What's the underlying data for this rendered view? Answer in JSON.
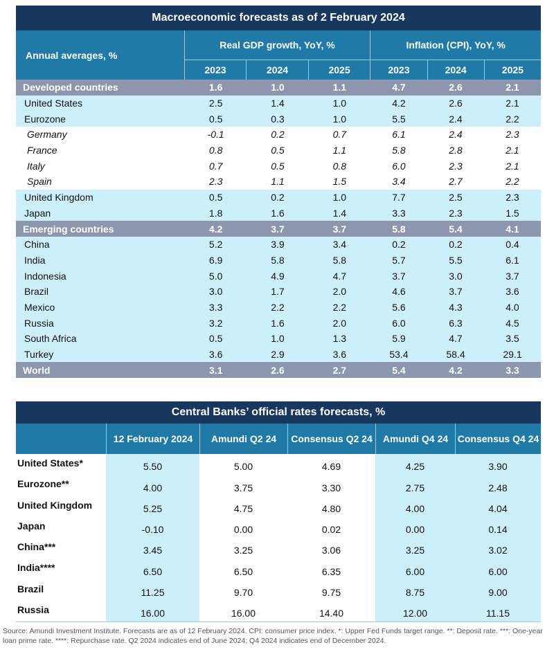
{
  "macro": {
    "title": "Macroeconomic forecasts as of 2 February 2024",
    "row_header": "Annual averages, %",
    "gdp_header": "Real GDP growth, YoY, %",
    "cpi_header": "Inflation (CPI), YoY, %",
    "years": [
      "2023",
      "2024",
      "2025"
    ],
    "rows": [
      {
        "label": "Developed countries",
        "type": "agg",
        "gdp": [
          "1.6",
          "1.0",
          "1.1"
        ],
        "cpi": [
          "4.7",
          "2.6",
          "2.1"
        ]
      },
      {
        "label": "United States",
        "type": "blue",
        "gdp": [
          "2.5",
          "1.4",
          "1.0"
        ],
        "cpi": [
          "4.2",
          "2.6",
          "2.1"
        ]
      },
      {
        "label": "Eurozone",
        "type": "blue",
        "gdp": [
          "0.5",
          "0.3",
          "1.0"
        ],
        "cpi": [
          "5.5",
          "2.4",
          "2.2"
        ]
      },
      {
        "label": "Germany",
        "type": "white",
        "gdp": [
          "-0.1",
          "0.2",
          "0.7"
        ],
        "cpi": [
          "6.1",
          "2.4",
          "2.3"
        ]
      },
      {
        "label": "France",
        "type": "white",
        "gdp": [
          "0.8",
          "0.5",
          "1.1"
        ],
        "cpi": [
          "5.8",
          "2.8",
          "2.1"
        ]
      },
      {
        "label": "Italy",
        "type": "white",
        "gdp": [
          "0.7",
          "0.5",
          "0.8"
        ],
        "cpi": [
          "6.0",
          "2.3",
          "2.1"
        ]
      },
      {
        "label": "Spain",
        "type": "white",
        "gdp": [
          "2.3",
          "1.1",
          "1.5"
        ],
        "cpi": [
          "3.4",
          "2.7",
          "2.2"
        ]
      },
      {
        "label": "United Kingdom",
        "type": "blue",
        "gdp": [
          "0.5",
          "0.2",
          "1.0"
        ],
        "cpi": [
          "7.7",
          "2.5",
          "2.3"
        ]
      },
      {
        "label": "Japan",
        "type": "blue",
        "gdp": [
          "1.8",
          "1.6",
          "1.4"
        ],
        "cpi": [
          "3.3",
          "2.3",
          "1.5"
        ]
      },
      {
        "label": "Emerging countries",
        "type": "agg",
        "gdp": [
          "4.2",
          "3.7",
          "3.7"
        ],
        "cpi": [
          "5.8",
          "5.4",
          "4.1"
        ]
      },
      {
        "label": "China",
        "type": "blue",
        "gdp": [
          "5.2",
          "3.9",
          "3.4"
        ],
        "cpi": [
          "0.2",
          "0.2",
          "0.4"
        ]
      },
      {
        "label": "India",
        "type": "blue",
        "gdp": [
          "6.9",
          "5.8",
          "5.8"
        ],
        "cpi": [
          "5.7",
          "5.5",
          "6.1"
        ]
      },
      {
        "label": "Indonesia",
        "type": "blue",
        "gdp": [
          "5.0",
          "4.9",
          "4.7"
        ],
        "cpi": [
          "3.7",
          "3.0",
          "3.7"
        ]
      },
      {
        "label": "Brazil",
        "type": "blue",
        "gdp": [
          "3.0",
          "1.7",
          "2.0"
        ],
        "cpi": [
          "4.6",
          "3.7",
          "3.6"
        ]
      },
      {
        "label": "Mexico",
        "type": "blue",
        "gdp": [
          "3.3",
          "2.2",
          "2.2"
        ],
        "cpi": [
          "5.6",
          "4.3",
          "4.0"
        ]
      },
      {
        "label": "Russia",
        "type": "blue",
        "gdp": [
          "3.2",
          "1.6",
          "2.0"
        ],
        "cpi": [
          "6.0",
          "6.3",
          "4.5"
        ]
      },
      {
        "label": "South Africa",
        "type": "blue",
        "gdp": [
          "0.5",
          "1.0",
          "1.3"
        ],
        "cpi": [
          "5.9",
          "4.7",
          "3.5"
        ]
      },
      {
        "label": "Turkey",
        "type": "blue",
        "gdp": [
          "3.6",
          "2.9",
          "3.6"
        ],
        "cpi": [
          "53.4",
          "58.4",
          "29.1"
        ]
      },
      {
        "label": "World",
        "type": "agg",
        "gdp": [
          "3.1",
          "2.6",
          "2.7"
        ],
        "cpi": [
          "5.4",
          "4.2",
          "3.3"
        ]
      }
    ]
  },
  "rates": {
    "title": "Central Banks’ official rates forecasts, %",
    "columns": [
      "12 February 2024",
      "Amundi Q2 24",
      "Consensus Q2 24",
      "Amundi Q4 24",
      "Consensus Q4 24"
    ],
    "rows": [
      {
        "label": "United States*",
        "values": [
          "5.50",
          "5.00",
          "4.69",
          "4.25",
          "3.90"
        ]
      },
      {
        "label": "Eurozone**",
        "values": [
          "4.00",
          "3.75",
          "3.30",
          "2.75",
          "2.48"
        ]
      },
      {
        "label": "United Kingdom",
        "values": [
          "5.25",
          "4.75",
          "4.80",
          "4.00",
          "4.04"
        ]
      },
      {
        "label": "Japan",
        "values": [
          "-0.10",
          "0.00",
          "0.02",
          "0.00",
          "0.14"
        ]
      },
      {
        "label": "China***",
        "values": [
          "3.45",
          "3.25",
          "3.06",
          "3.25",
          "3.02"
        ]
      },
      {
        "label": "India****",
        "values": [
          "6.50",
          "6.50",
          "6.35",
          "6.00",
          "6.00"
        ]
      },
      {
        "label": "Brazil",
        "values": [
          "11.25",
          "9.70",
          "9.75",
          "8.75",
          "9.00"
        ]
      },
      {
        "label": "Russia",
        "values": [
          "16.00",
          "16.00",
          "14.40",
          "12.00",
          "11.15"
        ]
      }
    ]
  },
  "source": "Source: Amundi Investment Institute. Forecasts are as of 12 February 2024. CPI: consumer price index. *: Upper Fed Funds target range. **: Deposit rate. ***: One-year loan prime rate. ****: Repurchase rate. Q2 2024 indicates end of June 2024; Q4 2024 indicates end of December 2024."
}
